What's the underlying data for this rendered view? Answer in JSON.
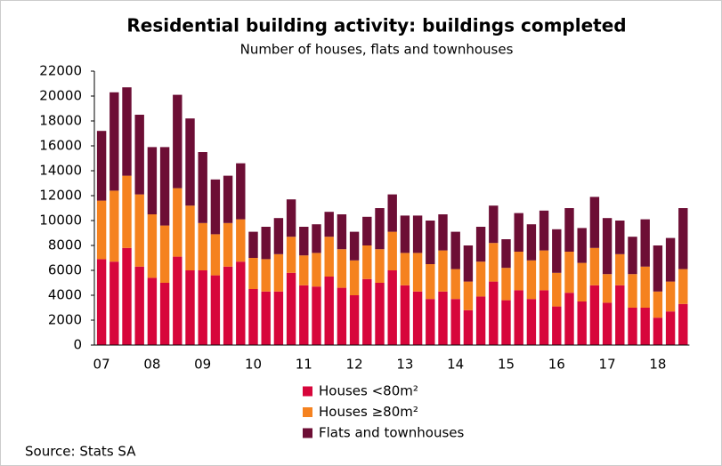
{
  "chart_data": {
    "type": "stacked_bar",
    "title": "Residential building activity: buildings completed",
    "subtitle": "Number of houses, flats and townhouses",
    "source": "Source: Stats SA",
    "categories": [
      "07",
      null,
      null,
      null,
      "08",
      null,
      null,
      null,
      "09",
      null,
      null,
      null,
      "10",
      null,
      null,
      null,
      "11",
      null,
      null,
      null,
      "12",
      null,
      null,
      null,
      "13",
      null,
      null,
      null,
      "14",
      null,
      null,
      null,
      "15",
      null,
      null,
      null,
      "16",
      null,
      null,
      null,
      "17",
      null,
      null,
      null,
      "18",
      null,
      null
    ],
    "series": [
      {
        "name": "Houses <80m²",
        "color": "#d7063b",
        "values": [
          6900,
          6700,
          7800,
          6300,
          5400,
          5000,
          7100,
          6000,
          6000,
          5600,
          6300,
          6700,
          4500,
          4300,
          4300,
          5800,
          4800,
          4700,
          5500,
          4600,
          4000,
          5300,
          5000,
          6000,
          4800,
          4300,
          3700,
          4300,
          3700,
          2800,
          3900,
          5100,
          3600,
          4400,
          3700,
          4400,
          3100,
          4200,
          3500,
          4800,
          3400,
          4800,
          3000,
          3000,
          2200,
          2700,
          3300
        ]
      },
      {
        "name": "Houses ≥80m²",
        "color": "#f5821f",
        "values": [
          4700,
          5700,
          5800,
          5800,
          5100,
          4600,
          5500,
          5200,
          3800,
          3300,
          3500,
          3400,
          2500,
          2600,
          3000,
          2900,
          2400,
          2700,
          3200,
          3100,
          2800,
          2700,
          2700,
          3100,
          2600,
          3100,
          2800,
          3300,
          2400,
          2300,
          2800,
          3100,
          2600,
          3100,
          3100,
          3200,
          2700,
          3300,
          3100,
          3000,
          2300,
          2500,
          2700,
          3300,
          2100,
          2400,
          2800
        ]
      },
      {
        "name": "Flats and townhouses",
        "color": "#6d0e35",
        "values": [
          5600,
          7900,
          7100,
          6400,
          5400,
          6300,
          7500,
          7000,
          5700,
          4400,
          3800,
          4500,
          2100,
          2600,
          2900,
          3000,
          2300,
          2300,
          2000,
          2800,
          2300,
          2300,
          3300,
          3000,
          3000,
          3000,
          3500,
          2900,
          3000,
          2900,
          2800,
          3000,
          2300,
          3100,
          2900,
          3200,
          3500,
          3500,
          2800,
          4100,
          4500,
          2700,
          3000,
          3800,
          3700,
          3500,
          4900
        ]
      }
    ],
    "ylim": [
      0,
      22000
    ],
    "yticks": [
      0,
      2000,
      4000,
      6000,
      8000,
      10000,
      12000,
      14000,
      16000,
      18000,
      20000,
      22000
    ],
    "grid": false
  }
}
